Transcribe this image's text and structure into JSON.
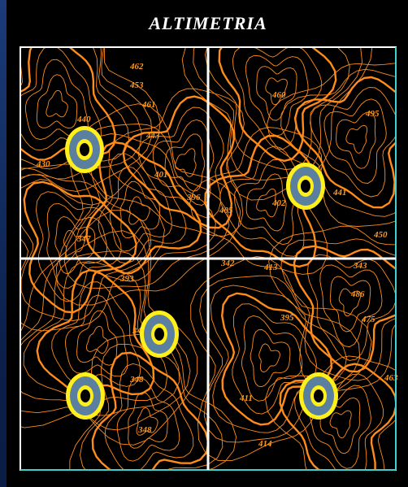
{
  "title": "ALTIMETRIA",
  "elevation_labels": [
    "462",
    "453",
    "461",
    "443",
    "440",
    "430",
    "401",
    "396",
    "460",
    "495",
    "405",
    "402",
    "441",
    "450",
    "347",
    "393",
    "342",
    "413",
    "395",
    "343",
    "486",
    "475",
    "345",
    "348",
    "348",
    "411",
    "414",
    "463"
  ]
}
